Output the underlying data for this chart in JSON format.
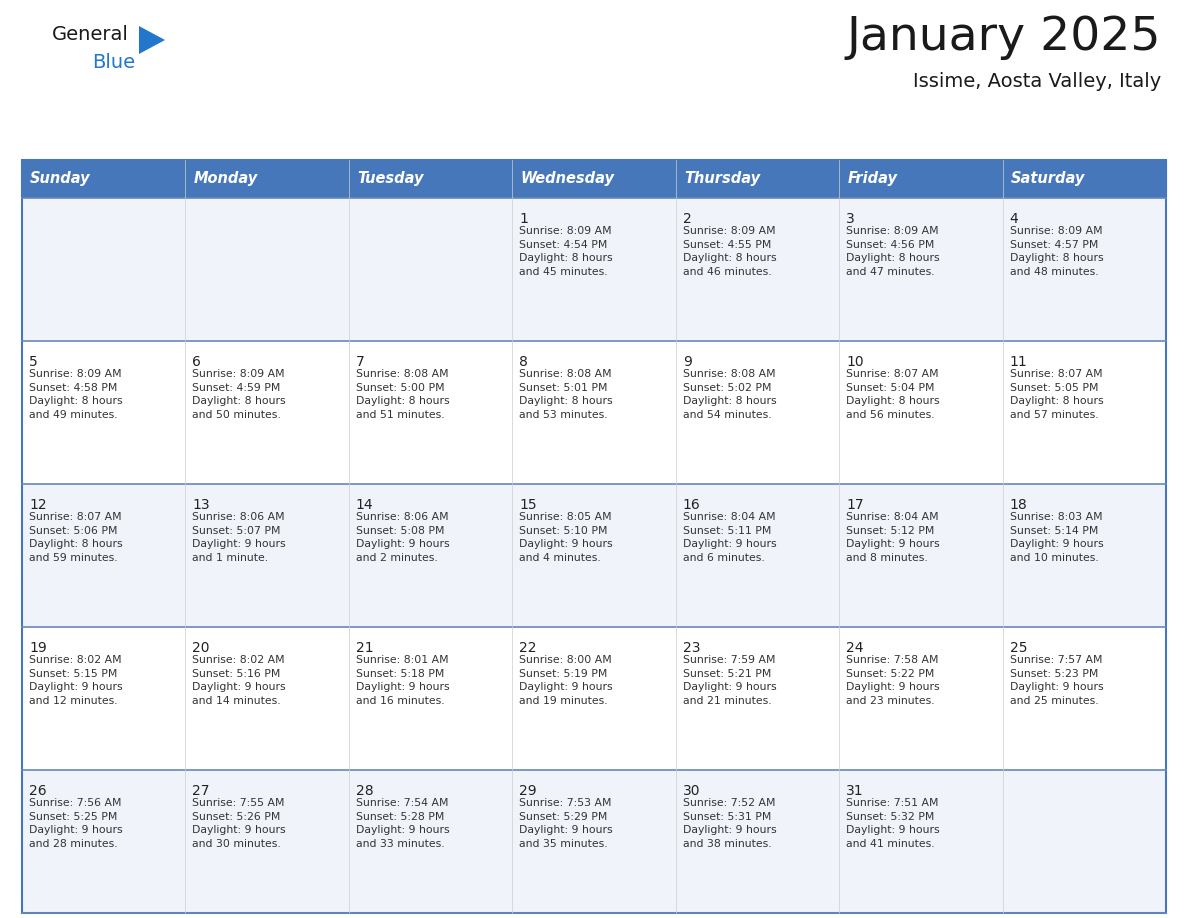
{
  "title": "January 2025",
  "subtitle": "Issime, Aosta Valley, Italy",
  "days_of_week": [
    "Sunday",
    "Monday",
    "Tuesday",
    "Wednesday",
    "Thursday",
    "Friday",
    "Saturday"
  ],
  "header_bg": "#4777BB",
  "header_text": "#FFFFFF",
  "cell_bg_light": "#FFFFFF",
  "cell_bg_alt": "#F0F4FA",
  "border_color": "#4777BB",
  "row_border_color": "#6688BB",
  "text_color": "#333333",
  "day_num_color": "#222222",
  "calendar_data": [
    [
      {
        "day": null,
        "info": ""
      },
      {
        "day": null,
        "info": ""
      },
      {
        "day": null,
        "info": ""
      },
      {
        "day": 1,
        "info": "Sunrise: 8:09 AM\nSunset: 4:54 PM\nDaylight: 8 hours\nand 45 minutes."
      },
      {
        "day": 2,
        "info": "Sunrise: 8:09 AM\nSunset: 4:55 PM\nDaylight: 8 hours\nand 46 minutes."
      },
      {
        "day": 3,
        "info": "Sunrise: 8:09 AM\nSunset: 4:56 PM\nDaylight: 8 hours\nand 47 minutes."
      },
      {
        "day": 4,
        "info": "Sunrise: 8:09 AM\nSunset: 4:57 PM\nDaylight: 8 hours\nand 48 minutes."
      }
    ],
    [
      {
        "day": 5,
        "info": "Sunrise: 8:09 AM\nSunset: 4:58 PM\nDaylight: 8 hours\nand 49 minutes."
      },
      {
        "day": 6,
        "info": "Sunrise: 8:09 AM\nSunset: 4:59 PM\nDaylight: 8 hours\nand 50 minutes."
      },
      {
        "day": 7,
        "info": "Sunrise: 8:08 AM\nSunset: 5:00 PM\nDaylight: 8 hours\nand 51 minutes."
      },
      {
        "day": 8,
        "info": "Sunrise: 8:08 AM\nSunset: 5:01 PM\nDaylight: 8 hours\nand 53 minutes."
      },
      {
        "day": 9,
        "info": "Sunrise: 8:08 AM\nSunset: 5:02 PM\nDaylight: 8 hours\nand 54 minutes."
      },
      {
        "day": 10,
        "info": "Sunrise: 8:07 AM\nSunset: 5:04 PM\nDaylight: 8 hours\nand 56 minutes."
      },
      {
        "day": 11,
        "info": "Sunrise: 8:07 AM\nSunset: 5:05 PM\nDaylight: 8 hours\nand 57 minutes."
      }
    ],
    [
      {
        "day": 12,
        "info": "Sunrise: 8:07 AM\nSunset: 5:06 PM\nDaylight: 8 hours\nand 59 minutes."
      },
      {
        "day": 13,
        "info": "Sunrise: 8:06 AM\nSunset: 5:07 PM\nDaylight: 9 hours\nand 1 minute."
      },
      {
        "day": 14,
        "info": "Sunrise: 8:06 AM\nSunset: 5:08 PM\nDaylight: 9 hours\nand 2 minutes."
      },
      {
        "day": 15,
        "info": "Sunrise: 8:05 AM\nSunset: 5:10 PM\nDaylight: 9 hours\nand 4 minutes."
      },
      {
        "day": 16,
        "info": "Sunrise: 8:04 AM\nSunset: 5:11 PM\nDaylight: 9 hours\nand 6 minutes."
      },
      {
        "day": 17,
        "info": "Sunrise: 8:04 AM\nSunset: 5:12 PM\nDaylight: 9 hours\nand 8 minutes."
      },
      {
        "day": 18,
        "info": "Sunrise: 8:03 AM\nSunset: 5:14 PM\nDaylight: 9 hours\nand 10 minutes."
      }
    ],
    [
      {
        "day": 19,
        "info": "Sunrise: 8:02 AM\nSunset: 5:15 PM\nDaylight: 9 hours\nand 12 minutes."
      },
      {
        "day": 20,
        "info": "Sunrise: 8:02 AM\nSunset: 5:16 PM\nDaylight: 9 hours\nand 14 minutes."
      },
      {
        "day": 21,
        "info": "Sunrise: 8:01 AM\nSunset: 5:18 PM\nDaylight: 9 hours\nand 16 minutes."
      },
      {
        "day": 22,
        "info": "Sunrise: 8:00 AM\nSunset: 5:19 PM\nDaylight: 9 hours\nand 19 minutes."
      },
      {
        "day": 23,
        "info": "Sunrise: 7:59 AM\nSunset: 5:21 PM\nDaylight: 9 hours\nand 21 minutes."
      },
      {
        "day": 24,
        "info": "Sunrise: 7:58 AM\nSunset: 5:22 PM\nDaylight: 9 hours\nand 23 minutes."
      },
      {
        "day": 25,
        "info": "Sunrise: 7:57 AM\nSunset: 5:23 PM\nDaylight: 9 hours\nand 25 minutes."
      }
    ],
    [
      {
        "day": 26,
        "info": "Sunrise: 7:56 AM\nSunset: 5:25 PM\nDaylight: 9 hours\nand 28 minutes."
      },
      {
        "day": 27,
        "info": "Sunrise: 7:55 AM\nSunset: 5:26 PM\nDaylight: 9 hours\nand 30 minutes."
      },
      {
        "day": 28,
        "info": "Sunrise: 7:54 AM\nSunset: 5:28 PM\nDaylight: 9 hours\nand 33 minutes."
      },
      {
        "day": 29,
        "info": "Sunrise: 7:53 AM\nSunset: 5:29 PM\nDaylight: 9 hours\nand 35 minutes."
      },
      {
        "day": 30,
        "info": "Sunrise: 7:52 AM\nSunset: 5:31 PM\nDaylight: 9 hours\nand 38 minutes."
      },
      {
        "day": 31,
        "info": "Sunrise: 7:51 AM\nSunset: 5:32 PM\nDaylight: 9 hours\nand 41 minutes."
      },
      {
        "day": null,
        "info": ""
      }
    ]
  ],
  "logo_general_color": "#1a1a1a",
  "logo_blue_color": "#2277CC",
  "logo_triangle_color": "#2277CC"
}
